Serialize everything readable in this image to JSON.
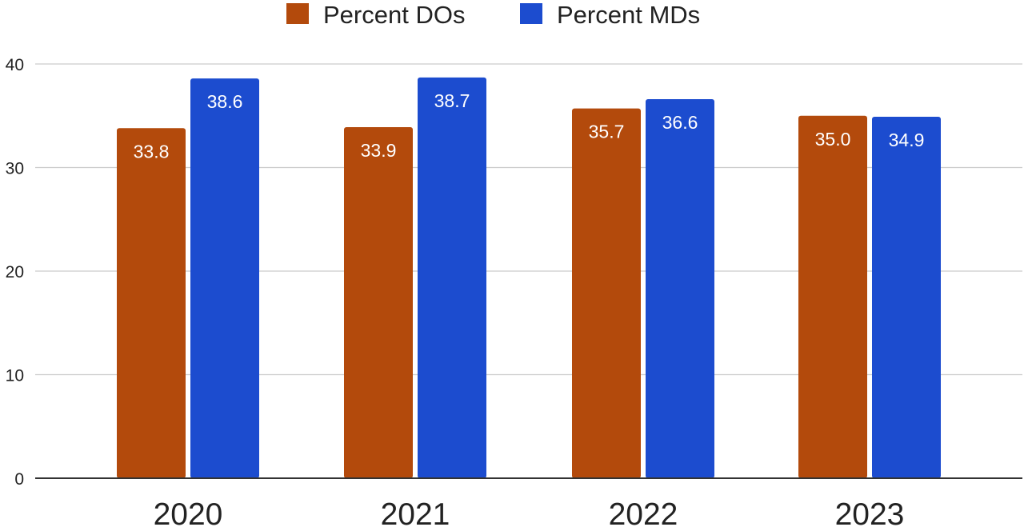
{
  "chart_data": {
    "type": "bar",
    "title": "",
    "xlabel": "",
    "ylabel": "",
    "categories": [
      "2020",
      "2021",
      "2022",
      "2023"
    ],
    "series": [
      {
        "name": "Percent DOs",
        "values": [
          33.8,
          33.9,
          35.7,
          35.0
        ],
        "labels": [
          "33.8",
          "33.9",
          "35.7",
          "35.0"
        ],
        "color": "#b34a0c"
      },
      {
        "name": "Percent MDs",
        "values": [
          38.6,
          38.7,
          36.6,
          34.9
        ],
        "labels": [
          "38.6",
          "38.7",
          "36.6",
          "34.9"
        ],
        "color": "#1c4ccf"
      }
    ],
    "ylim": [
      0,
      40
    ],
    "yticks": [
      0,
      10,
      20,
      30,
      40
    ],
    "ytick_labels": [
      "0",
      "10",
      "20",
      "30",
      "40"
    ],
    "grid": true,
    "legend_position": "top-center",
    "data_labels": true
  },
  "colors": {
    "grid": "#cccccc",
    "axis": "#333333",
    "data_label_text": "#ffffff"
  }
}
